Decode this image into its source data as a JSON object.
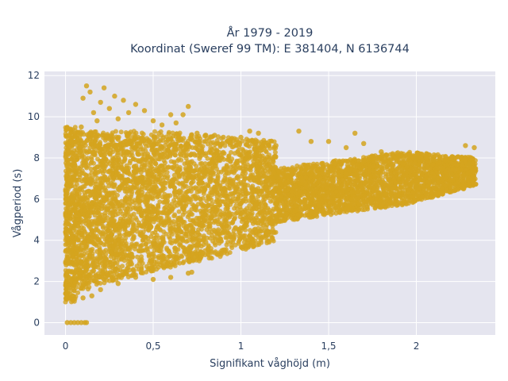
{
  "chart_data": {
    "type": "scatter",
    "title_line1": "År 1979 - 2019",
    "title_line2": "Koordinat (Sweref 99 TM): E 381404, N 6136744",
    "xlabel": "Signifikant våghöjd (m)",
    "ylabel": "Vågperiod (s)",
    "xlim": [
      -0.12,
      2.45
    ],
    "ylim": [
      -0.6,
      12.2
    ],
    "x_ticks": [
      0,
      0.5,
      1,
      1.5,
      2
    ],
    "x_tick_labels": [
      "0",
      "0,5",
      "1",
      "1,5",
      "2"
    ],
    "y_ticks": [
      0,
      2,
      4,
      6,
      8,
      10,
      12
    ],
    "y_tick_labels": [
      "0",
      "2",
      "4",
      "6",
      "8",
      "10",
      "12"
    ],
    "grid": true,
    "marker_color": "#d4a41e",
    "plot_background": "#e5e5ef",
    "series": [
      {
        "values": [
          [
            0.01,
            0
          ],
          [
            0.03,
            0
          ],
          [
            0.05,
            0
          ],
          [
            0.07,
            0
          ],
          [
            0.09,
            0
          ],
          [
            0.11,
            0
          ],
          [
            0.12,
            0
          ],
          [
            0.01,
            1.5
          ],
          [
            0.02,
            2.2
          ],
          [
            0.03,
            3.4
          ],
          [
            0.04,
            1.3
          ],
          [
            0.05,
            4.6
          ],
          [
            0.06,
            7.2
          ],
          [
            0.08,
            8.8
          ],
          [
            0.09,
            9.5
          ],
          [
            0.1,
            10.9
          ],
          [
            0.12,
            11.5
          ],
          [
            0.14,
            11.2
          ],
          [
            0.16,
            10.2
          ],
          [
            0.18,
            9.8
          ],
          [
            0.2,
            10.7
          ],
          [
            0.22,
            11.4
          ],
          [
            0.25,
            10.4
          ],
          [
            0.28,
            11.0
          ],
          [
            0.3,
            9.9
          ],
          [
            0.33,
            10.8
          ],
          [
            0.36,
            10.2
          ],
          [
            0.4,
            10.6
          ],
          [
            0.45,
            10.3
          ],
          [
            0.5,
            9.8
          ],
          [
            0.55,
            9.6
          ],
          [
            0.6,
            10.1
          ],
          [
            0.63,
            9.7
          ],
          [
            0.67,
            10.1
          ],
          [
            0.7,
            10.5
          ],
          [
            0.75,
            9.2
          ],
          [
            0.8,
            9.1
          ],
          [
            0.85,
            9.1
          ],
          [
            0.9,
            9.0
          ],
          [
            1.0,
            9.0
          ],
          [
            1.05,
            9.3
          ],
          [
            1.1,
            9.2
          ],
          [
            1.2,
            8.6
          ],
          [
            1.33,
            9.3
          ],
          [
            1.4,
            8.8
          ],
          [
            1.5,
            8.8
          ],
          [
            1.6,
            8.5
          ],
          [
            1.65,
            9.2
          ],
          [
            1.7,
            8.7
          ],
          [
            1.8,
            8.3
          ],
          [
            1.9,
            8.1
          ],
          [
            2.0,
            8.0
          ],
          [
            2.1,
            7.9
          ],
          [
            2.2,
            8.0
          ],
          [
            2.28,
            8.6
          ],
          [
            2.33,
            8.5
          ],
          [
            2.3,
            7.7
          ],
          [
            2.2,
            7.2
          ],
          [
            2.1,
            6.9
          ],
          [
            2.0,
            6.6
          ],
          [
            1.8,
            6.2
          ],
          [
            1.6,
            5.8
          ],
          [
            1.4,
            5.4
          ],
          [
            1.2,
            5.1
          ],
          [
            1.0,
            4.6
          ],
          [
            0.9,
            4.4
          ],
          [
            0.8,
            3.9
          ],
          [
            0.7,
            3.6
          ],
          [
            0.6,
            2.8
          ],
          [
            0.5,
            2.6
          ],
          [
            0.4,
            2.2
          ],
          [
            0.3,
            1.9
          ],
          [
            0.2,
            1.6
          ],
          [
            0.15,
            1.3
          ],
          [
            0.1,
            1.2
          ],
          [
            0.7,
            2.4
          ],
          [
            0.72,
            2.45
          ],
          [
            0.6,
            2.2
          ],
          [
            0.5,
            2.1
          ],
          [
            0.2,
            3.2
          ],
          [
            0.25,
            4.8
          ],
          [
            0.3,
            6.5
          ],
          [
            0.35,
            7.5
          ],
          [
            0.45,
            6.8
          ],
          [
            0.55,
            7.6
          ],
          [
            0.65,
            6.4
          ],
          [
            0.8,
            7.3
          ],
          [
            1.0,
            6.8
          ],
          [
            1.2,
            7.1
          ],
          [
            1.4,
            6.5
          ],
          [
            1.5,
            7.3
          ],
          [
            1.7,
            7.2
          ],
          [
            1.9,
            7.0
          ],
          [
            1.25,
            6.0
          ],
          [
            1.6,
            6.4
          ]
        ]
      }
    ]
  }
}
